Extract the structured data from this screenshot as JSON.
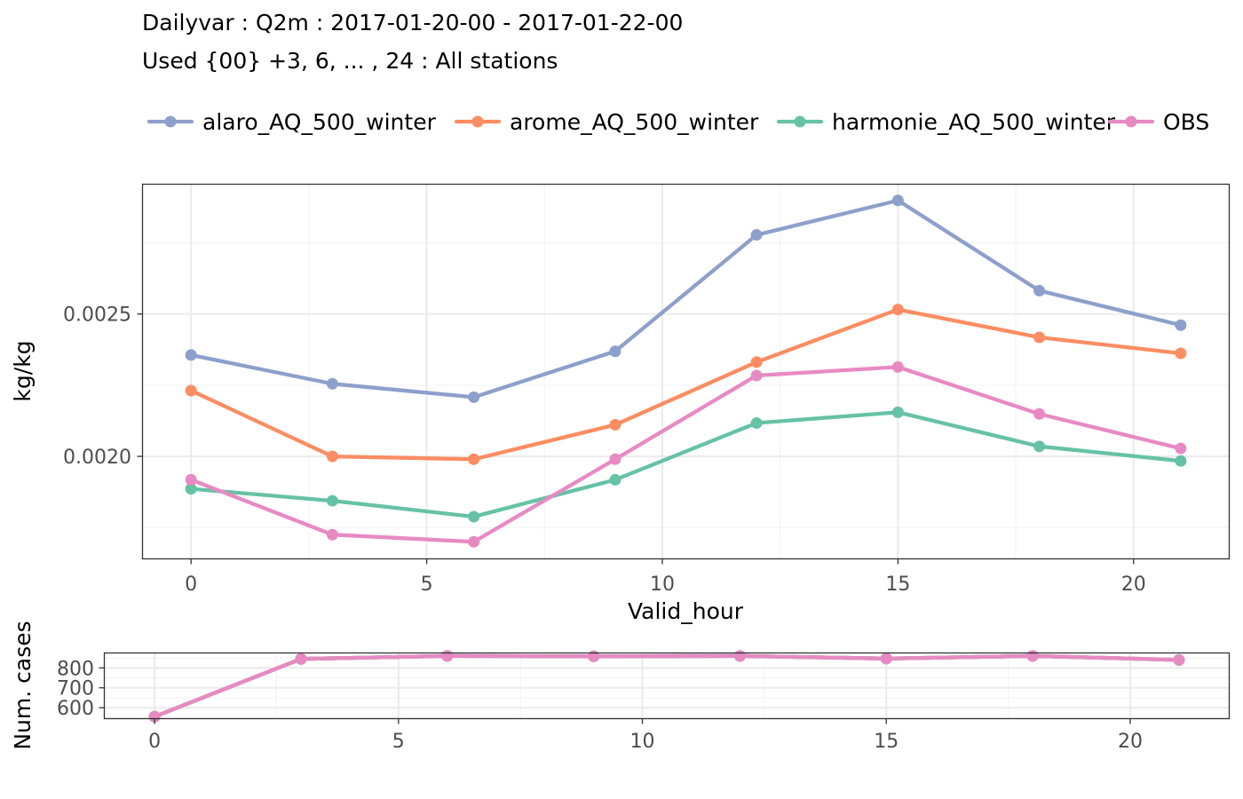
{
  "header": {
    "title": "Dailyvar : Q2m : 2017-01-20-00 - 2017-01-22-00",
    "subtitle": "Used {00} +3, 6, ... , 24 : All stations"
  },
  "colors": {
    "alaro_AQ_500_winter": "#8da0cb",
    "arome_AQ_500_winter": "#fc8d62",
    "harmonie_AQ_500_winter": "#66c2a5",
    "OBS": "#e78ac3",
    "panel_border": "#333333",
    "grid_major": "#ebebeb",
    "grid_minor": "#f3f3f3"
  },
  "chart_data": [
    {
      "type": "line",
      "title": "Dailyvar : Q2m : 2017-01-20-00 - 2017-01-22-00",
      "subtitle": "Used {00} +3, 6, ... , 24 : All stations",
      "xlabel": "Valid_hour",
      "ylabel": "kg/kg",
      "x": [
        0,
        3,
        6,
        9,
        12,
        15,
        18,
        21
      ],
      "xlim": [
        -1.03,
        22.03
      ],
      "ylim": [
        0.00164,
        0.002956
      ],
      "xticks": [
        0,
        5,
        10,
        15,
        20
      ],
      "xtick_labels": [
        "0",
        "5",
        "10",
        "15",
        "20"
      ],
      "yticks": [
        0.002,
        0.0025
      ],
      "ytick_labels": [
        "0.0020",
        "0.0025"
      ],
      "grid": true,
      "legend": "top",
      "series": [
        {
          "name": "alaro_AQ_500_winter",
          "values": [
            0.002356,
            0.002255,
            0.002208,
            0.002369,
            0.002778,
            0.002899,
            0.002582,
            0.002461
          ]
        },
        {
          "name": "arome_AQ_500_winter",
          "values": [
            0.002231,
            0.002,
            0.00199,
            0.002111,
            0.002331,
            0.002516,
            0.002418,
            0.002362
          ]
        },
        {
          "name": "harmonie_AQ_500_winter",
          "values": [
            0.001886,
            0.001844,
            0.001788,
            0.001918,
            0.002117,
            0.002155,
            0.002035,
            0.001984
          ]
        },
        {
          "name": "OBS",
          "values": [
            0.001918,
            0.001725,
            0.0017,
            0.00199,
            0.002284,
            0.002314,
            0.002149,
            0.002028
          ]
        }
      ]
    },
    {
      "type": "line",
      "xlabel": "",
      "ylabel": "Num. cases",
      "x": [
        0,
        3,
        6,
        9,
        12,
        15,
        18,
        21
      ],
      "xlim": [
        -1.03,
        22.03
      ],
      "ylim": [
        545,
        875
      ],
      "xticks": [
        0,
        5,
        10,
        15,
        20
      ],
      "xtick_labels": [
        "0",
        "5",
        "10",
        "15",
        "20"
      ],
      "yticks": [
        600,
        700,
        800
      ],
      "ytick_labels": [
        "600",
        "700",
        "800"
      ],
      "grid": true,
      "series": [
        {
          "name": "alaro_AQ_500_winter",
          "values": [
            555,
            845,
            860,
            858,
            860,
            847,
            860,
            840
          ]
        },
        {
          "name": "arome_AQ_500_winter",
          "values": [
            555,
            845,
            860,
            858,
            860,
            847,
            860,
            840
          ]
        },
        {
          "name": "harmonie_AQ_500_winter",
          "values": [
            555,
            845,
            860,
            858,
            860,
            847,
            860,
            840
          ]
        },
        {
          "name": "OBS",
          "values": [
            555,
            845,
            860,
            858,
            860,
            847,
            860,
            840
          ]
        }
      ]
    }
  ]
}
